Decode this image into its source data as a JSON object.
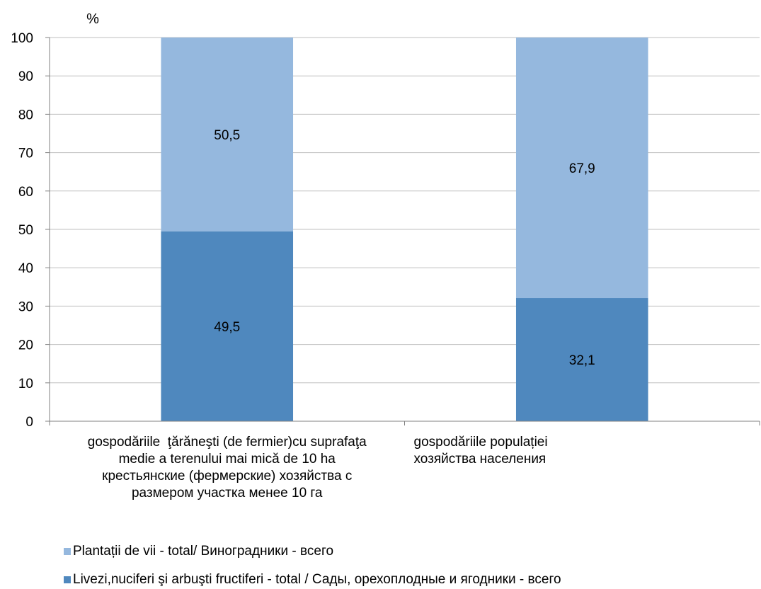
{
  "chart_data": {
    "type": "bar",
    "stacked": true,
    "ylabel": "%",
    "ylim": [
      0,
      100
    ],
    "yticks": [
      0,
      10,
      20,
      30,
      40,
      50,
      60,
      70,
      80,
      90,
      100
    ],
    "grid": true,
    "categories": [
      [
        "gospodăriile  ţărăneşti (de fermier)cu suprafaţa",
        "medie a terenului mai mică de 10 ha",
        "крестьянские (фермерские) хозяйства с",
        "размером участка менее 10 га"
      ],
      [
        "gospodăriile populației",
        "хозяйства населения"
      ]
    ],
    "series": [
      {
        "name": "Livezi,nuciferi şi arbuşti fructiferi - total / Сады, орехоплодные и ягодники - всего",
        "values": [
          49.5,
          32.1
        ],
        "labels": [
          "49,5",
          "32,1"
        ],
        "color": "#4f88be"
      },
      {
        "name": "Plantații de vii - total/ Виноградники - всего",
        "values": [
          50.5,
          67.9
        ],
        "labels": [
          "50,5",
          "67,9"
        ],
        "color": "#95b8de"
      }
    ],
    "legend_position": "bottom"
  }
}
